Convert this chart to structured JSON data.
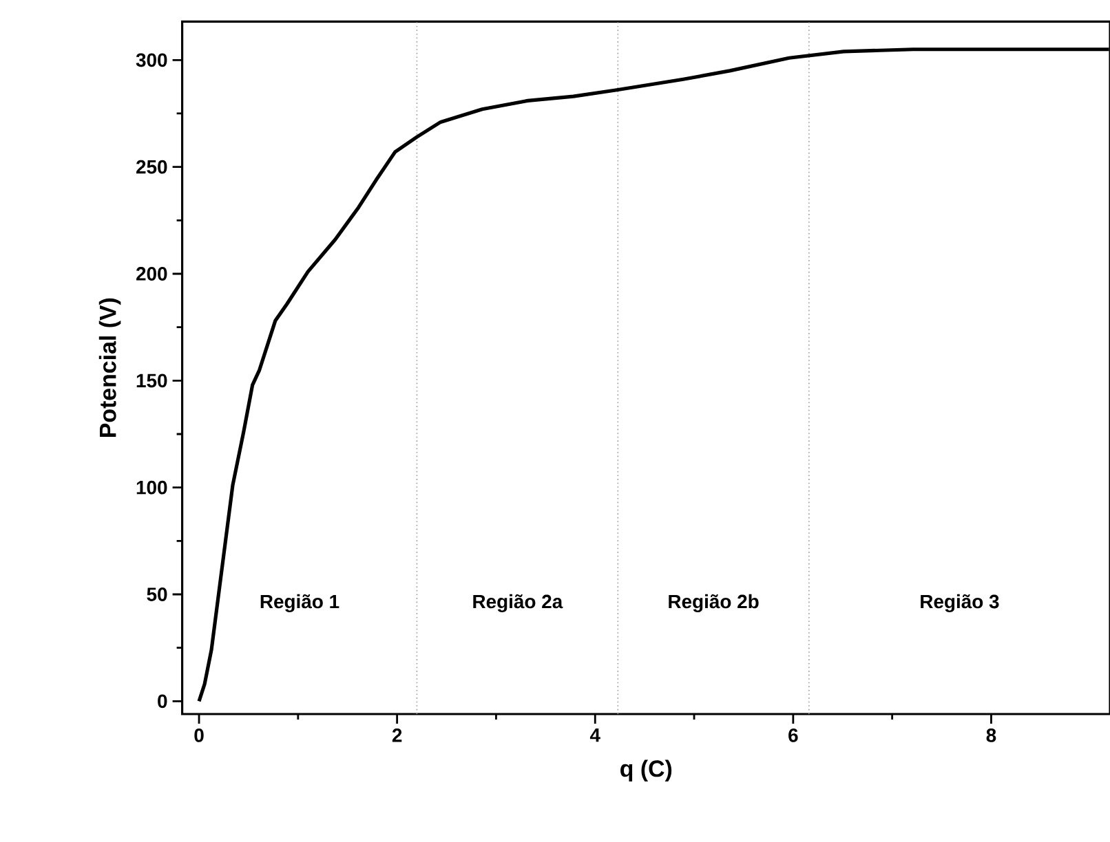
{
  "chart_data": {
    "type": "line",
    "xlabel": "q (C)",
    "ylabel": "Potencial (V)",
    "xlim": [
      -0.17,
      9.2
    ],
    "ylim": [
      -6,
      318
    ],
    "xticks": [
      0,
      2,
      4,
      6,
      8
    ],
    "yticks": [
      0,
      50,
      100,
      150,
      200,
      250,
      300
    ],
    "x": [
      0,
      0.056,
      0.125,
      0.22,
      0.34,
      0.45,
      0.54,
      0.61,
      0.77,
      0.89,
      1.1,
      1.375,
      1.61,
      1.79,
      1.98,
      2.2,
      2.44,
      2.86,
      3.32,
      3.78,
      4.22,
      4.89,
      5.36,
      5.96,
      6.51,
      7.21,
      8.13,
      9.19
    ],
    "series": [
      {
        "color": "#000000",
        "values": [
          0,
          8,
          24,
          58,
          101,
          126,
          148,
          155,
          178,
          186,
          201,
          216,
          231,
          244,
          257,
          264,
          271,
          277,
          281,
          283,
          286,
          291,
          295,
          301,
          304,
          305,
          305,
          305
        ]
      }
    ],
    "ref_lines": [
      {
        "axis": "x",
        "value": 2.2,
        "color": "#999999",
        "line_style": "dotted"
      },
      {
        "axis": "x",
        "value": 4.23,
        "color": "#999999",
        "line_style": "dotted"
      },
      {
        "axis": "x",
        "value": 6.16,
        "color": "#999999",
        "line_style": "dotted"
      }
    ],
    "annotations": [
      "Região 1",
      "Região 2a",
      "Região 2b",
      "Região 3"
    ]
  }
}
